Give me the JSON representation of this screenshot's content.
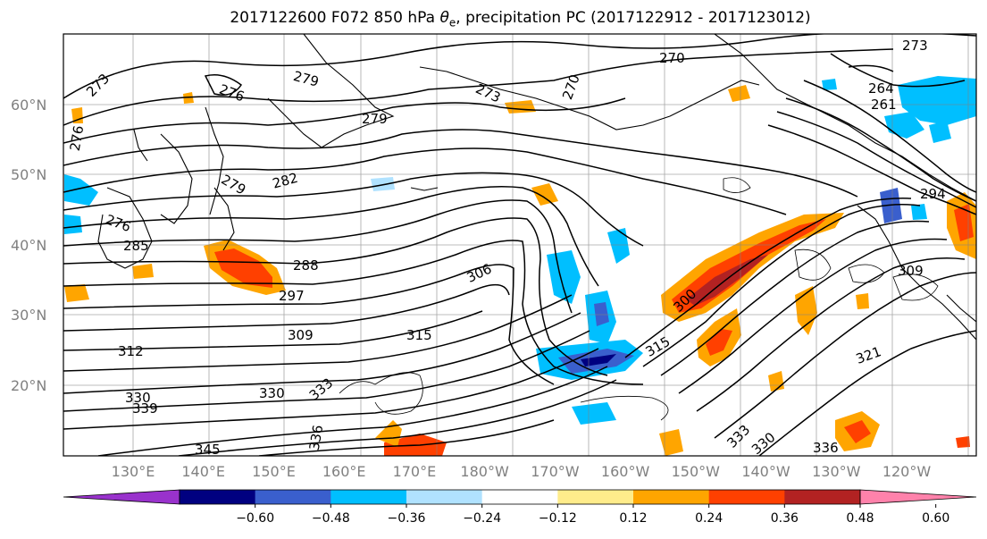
{
  "title": {
    "prefix": "2017122600 F072 850 hPa ",
    "symbol": "θ",
    "subscript": "e",
    "suffix": ", precipitation PC (2017122912 - 2017123012)"
  },
  "lat_labels": [
    "60°N",
    "50°N",
    "40°N",
    "30°N",
    "20°N"
  ],
  "lon_labels": [
    "130°E",
    "140°E",
    "150°E",
    "160°E",
    "170°E",
    "180°W",
    "170°W",
    "160°W",
    "150°W",
    "140°W",
    "130°W",
    "120°W"
  ],
  "colorbar": {
    "colors": [
      "#9932cc",
      "#000080",
      "#3a5fcd",
      "#00bfff",
      "#b0e2ff",
      "#ffffff",
      "#ffec8b",
      "#ffa500",
      "#ff4000",
      "#b22222",
      "#ff82ab"
    ],
    "tick_labels": [
      "−0.60",
      "−0.48",
      "−0.36",
      "−0.24",
      "−0.12",
      "0.12",
      "0.24",
      "0.36",
      "0.48",
      "0.60"
    ]
  },
  "contour_labels": [
    "273",
    "276",
    "279",
    "279",
    "270",
    "273",
    "270",
    "273",
    "264",
    "261",
    "276",
    "279",
    "282",
    "276",
    "285",
    "288",
    "297",
    "306",
    "309",
    "312",
    "315",
    "300",
    "330",
    "339",
    "345",
    "336",
    "330",
    "333",
    "315",
    "321",
    "333",
    "330",
    "336",
    "294",
    "309"
  ]
}
